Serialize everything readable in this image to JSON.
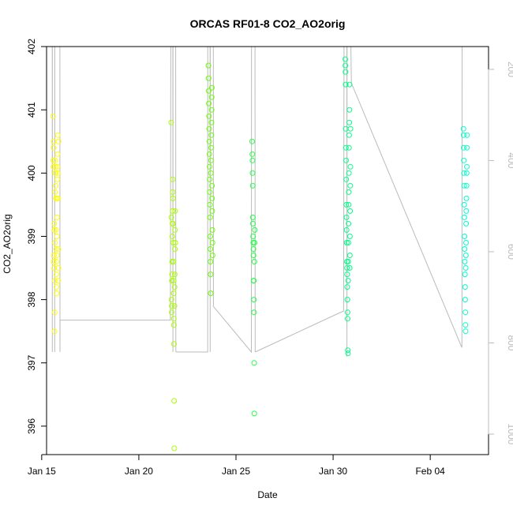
{
  "chart_data": {
    "type": "scatter",
    "title": "ORCAS RF01-8 CO2_AO2orig",
    "xlabel": "Date",
    "ylabel": "CO2_AO2orig",
    "xlim": [
      "2016-01-15T06:00",
      "2016-02-07T00:00"
    ],
    "ylim": [
      395.55,
      402.0
    ],
    "y2lim": [
      1045,
      150
    ],
    "x_ticks": [
      {
        "label": "Jan 15",
        "date": "2016-01-15"
      },
      {
        "label": "Jan 20",
        "date": "2016-01-20"
      },
      {
        "label": "Jan 25",
        "date": "2016-01-25"
      },
      {
        "label": "Jan 30",
        "date": "2016-01-30"
      },
      {
        "label": "Feb 04",
        "date": "2016-02-04"
      }
    ],
    "y_ticks": [
      "396",
      "397",
      "398",
      "399",
      "400",
      "401",
      "402"
    ],
    "y2_ticks": [
      "200",
      "400",
      "600",
      "800",
      "1000"
    ],
    "grid": false,
    "legend": "none",
    "colors": {
      "RF01": "#ffff00",
      "RF02": "#aaff00",
      "RF03": "#66ff00",
      "RF04": "#22ff44",
      "RF05": "#00ff88",
      "RF06": "#00ffcc",
      "altitude_line": "#bbbbbb"
    },
    "series": [
      {
        "color_key": "RF01",
        "x": [
          "2016-01-15T14:00",
          "2016-01-15T14:20",
          "2016-01-15T14:30",
          "2016-01-15T14:40",
          "2016-01-15T14:50",
          "2016-01-15T15:00",
          "2016-01-15T15:10",
          "2016-01-15T15:20",
          "2016-01-15T15:30",
          "2016-01-15T15:40",
          "2016-01-15T15:50",
          "2016-01-15T16:00",
          "2016-01-15T16:10",
          "2016-01-15T16:20",
          "2016-01-15T16:30",
          "2016-01-15T16:40",
          "2016-01-15T16:50",
          "2016-01-15T17:00",
          "2016-01-15T17:10",
          "2016-01-15T17:20",
          "2016-01-15T17:30",
          "2016-01-15T17:40",
          "2016-01-15T17:50",
          "2016-01-15T18:00",
          "2016-01-15T18:10",
          "2016-01-15T18:20",
          "2016-01-15T18:30",
          "2016-01-15T18:40",
          "2016-01-15T18:50",
          "2016-01-15T19:00",
          "2016-01-15T19:10",
          "2016-01-15T19:20",
          "2016-01-15T19:30",
          "2016-01-15T19:40",
          "2016-01-15T19:50",
          "2016-01-15T20:00",
          "2016-01-15T20:10",
          "2016-01-15T20:20",
          "2016-01-15T20:30",
          "2016-01-15T20:40",
          "2016-01-15T20:50"
        ],
        "y": [
          400.9,
          400.2,
          400.1,
          400.4,
          400.5,
          398.6,
          398.7,
          398.5,
          399.2,
          399.1,
          397.5,
          397.8,
          398.3,
          398.9,
          399.7,
          400.0,
          400.2,
          400.1,
          400.0,
          399.8,
          399.6,
          399.1,
          398.8,
          398.6,
          398.4,
          398.2,
          398.1,
          398.7,
          399.0,
          399.3,
          399.6,
          399.9,
          400.1,
          400.3,
          400.6,
          400.0,
          399.6,
          398.3,
          398.5,
          398.8,
          400.5
        ],
        "altitude_hpa": [
          [
            [
              "2016-01-15T13:00",
              150
            ],
            [
              "2016-01-15T13:05",
              820
            ],
            [
              "2016-01-15T13:10",
              150
            ],
            [
              "2016-01-15T16:00",
              150
            ],
            [
              "2016-01-15T16:05",
              820
            ],
            [
              "2016-01-15T16:10",
              150
            ],
            [
              "2016-01-15T22:30",
              150
            ],
            [
              "2016-01-15T22:35",
              820
            ],
            [
              "2016-01-15T22:40",
              750
            ]
          ]
        ]
      },
      {
        "color_key": "RF02",
        "x": [
          "2016-01-21T16:00",
          "2016-01-21T16:10",
          "2016-01-21T16:20",
          "2016-01-21T16:30",
          "2016-01-21T16:40",
          "2016-01-21T16:50",
          "2016-01-21T17:00",
          "2016-01-21T17:10",
          "2016-01-21T17:20",
          "2016-01-21T17:30",
          "2016-01-21T17:40",
          "2016-01-21T17:50",
          "2016-01-21T18:00",
          "2016-01-21T18:10",
          "2016-01-21T18:20",
          "2016-01-21T18:30",
          "2016-01-21T18:40",
          "2016-01-21T18:50",
          "2016-01-21T19:00",
          "2016-01-21T19:10",
          "2016-01-21T19:20",
          "2016-01-21T19:30",
          "2016-01-21T19:40",
          "2016-01-21T19:50",
          "2016-01-21T20:00",
          "2016-01-21T20:10",
          "2016-01-21T20:20",
          "2016-01-21T20:30",
          "2016-01-21T20:40",
          "2016-01-21T20:50",
          "2016-01-21T21:00"
        ],
        "y": [
          400.8,
          399.3,
          398.0,
          397.8,
          397.9,
          398.3,
          398.4,
          398.6,
          399.0,
          399.2,
          399.4,
          399.7,
          399.9,
          399.6,
          399.2,
          398.9,
          398.6,
          398.3,
          398.1,
          397.7,
          397.6,
          397.3,
          396.4,
          395.65,
          397.9,
          398.2,
          398.4,
          398.8,
          399.1,
          399.4,
          398.9
        ],
        "altitude_hpa": [
          [
            [
              "2016-01-21T15:00",
              750
            ],
            [
              "2016-01-21T15:30",
              150
            ],
            [
              "2016-01-21T18:00",
              150
            ],
            [
              "2016-01-21T18:05",
              820
            ],
            [
              "2016-01-21T18:10",
              150
            ],
            [
              "2016-01-21T21:30",
              150
            ],
            [
              "2016-01-21T21:40",
              820
            ]
          ]
        ]
      },
      {
        "color_key": "RF03",
        "x": [
          "2016-01-23T14:00",
          "2016-01-23T14:10",
          "2016-01-23T14:20",
          "2016-01-23T14:30",
          "2016-01-23T14:40",
          "2016-01-23T14:50",
          "2016-01-23T15:00",
          "2016-01-23T15:10",
          "2016-01-23T15:20",
          "2016-01-23T15:30",
          "2016-01-23T15:40",
          "2016-01-23T15:50",
          "2016-01-23T16:00",
          "2016-01-23T16:10",
          "2016-01-23T16:20",
          "2016-01-23T16:30",
          "2016-01-23T16:40",
          "2016-01-23T16:50",
          "2016-01-23T17:00",
          "2016-01-23T17:10",
          "2016-01-23T17:20",
          "2016-01-23T17:30",
          "2016-01-23T17:40",
          "2016-01-23T17:50",
          "2016-01-23T18:00",
          "2016-01-23T18:10",
          "2016-01-23T18:20",
          "2016-01-23T18:30",
          "2016-01-23T18:40",
          "2016-01-23T18:50",
          "2016-01-23T19:00",
          "2016-01-23T19:10"
        ],
        "y": [
          401.7,
          401.5,
          401.3,
          401.1,
          400.9,
          400.7,
          400.5,
          400.3,
          400.1,
          399.9,
          399.7,
          399.5,
          399.3,
          399.0,
          398.8,
          398.6,
          398.4,
          398.1,
          400.0,
          400.2,
          400.4,
          400.6,
          400.8,
          401.0,
          401.2,
          401.35,
          399.8,
          399.6,
          399.4,
          399.1,
          398.9,
          398.7
        ],
        "altitude_hpa": [
          [
            [
              "2016-01-23T13:00",
              820
            ],
            [
              "2016-01-23T13:05",
              150
            ],
            [
              "2016-01-23T16:00",
              150
            ],
            [
              "2016-01-23T16:05",
              820
            ],
            [
              "2016-01-23T16:10",
              150
            ],
            [
              "2016-01-23T20:00",
              150
            ],
            [
              "2016-01-23T20:05",
              720
            ]
          ]
        ]
      },
      {
        "color_key": "RF04",
        "x": [
          "2016-01-25T20:00",
          "2016-01-25T20:10",
          "2016-01-25T20:20",
          "2016-01-25T20:30",
          "2016-01-25T20:40",
          "2016-01-25T20:50",
          "2016-01-25T21:00",
          "2016-01-25T21:10",
          "2016-01-25T21:20",
          "2016-01-25T21:30",
          "2016-01-25T21:40",
          "2016-01-25T21:50",
          "2016-01-25T22:00",
          "2016-01-25T22:10",
          "2016-01-25T22:20",
          "2016-01-25T22:30",
          "2016-01-25T22:40",
          "2016-01-25T22:50",
          "2016-01-25T23:00",
          "2016-01-25T23:10"
        ],
        "y": [
          400.5,
          400.3,
          400.2,
          400.0,
          399.8,
          399.3,
          399.2,
          399.0,
          398.9,
          398.8,
          398.7,
          398.3,
          398.3,
          398.0,
          397.8,
          397.0,
          396.2,
          398.6,
          398.9,
          399.1
        ],
        "altitude_hpa": [
          [
            [
              "2016-01-25T19:00",
              820
            ],
            [
              "2016-01-25T19:10",
              150
            ],
            [
              "2016-01-25T23:30",
              150
            ],
            [
              "2016-01-25T23:40",
              820
            ]
          ]
        ]
      },
      {
        "color_key": "RF05",
        "x": [
          "2016-01-30T15:00",
          "2016-01-30T15:10",
          "2016-01-30T15:20",
          "2016-01-30T15:30",
          "2016-01-30T15:40",
          "2016-01-30T15:50",
          "2016-01-30T16:00",
          "2016-01-30T16:10",
          "2016-01-30T16:20",
          "2016-01-30T16:30",
          "2016-01-30T16:40",
          "2016-01-30T16:50",
          "2016-01-30T17:00",
          "2016-01-30T17:10",
          "2016-01-30T17:20",
          "2016-01-30T17:30",
          "2016-01-30T17:40",
          "2016-01-30T17:50",
          "2016-01-30T18:00",
          "2016-01-30T18:10",
          "2016-01-30T18:20",
          "2016-01-30T18:30",
          "2016-01-30T18:40",
          "2016-01-30T18:50",
          "2016-01-30T19:00",
          "2016-01-30T19:10",
          "2016-01-30T19:20",
          "2016-01-30T19:30",
          "2016-01-30T19:40",
          "2016-01-30T19:50",
          "2016-01-30T20:00",
          "2016-01-30T20:10",
          "2016-01-30T20:20",
          "2016-01-30T20:30",
          "2016-01-30T20:40",
          "2016-01-30T20:50",
          "2016-01-30T21:00",
          "2016-01-30T21:10",
          "2016-01-30T21:20",
          "2016-01-30T21:30"
        ],
        "y": [
          401.8,
          401.7,
          401.6,
          401.4,
          400.7,
          400.4,
          400.2,
          399.9,
          399.5,
          399.3,
          399.1,
          398.9,
          398.6,
          398.5,
          398.4,
          398.2,
          398.0,
          397.8,
          397.7,
          397.2,
          397.15,
          398.3,
          398.6,
          398.9,
          399.2,
          399.5,
          399.7,
          400.0,
          400.4,
          400.6,
          400.8,
          401.0,
          401.4,
          398.5,
          398.7,
          399.0,
          399.4,
          399.8,
          400.1,
          400.7
        ],
        "altitude_hpa": [
          [
            [
              "2016-01-30T13:00",
              730
            ],
            [
              "2016-01-30T13:30",
              150
            ],
            [
              "2016-01-30T17:00",
              150
            ],
            [
              "2016-01-30T17:05",
              830
            ],
            [
              "2016-01-30T17:10",
              150
            ],
            [
              "2016-01-30T22:00",
              150
            ],
            [
              "2016-01-30T22:30",
              230
            ]
          ]
        ]
      },
      {
        "color_key": "RF06",
        "x": [
          "2016-02-05T17:00",
          "2016-02-05T17:10",
          "2016-02-05T17:20",
          "2016-02-05T17:30",
          "2016-02-05T17:40",
          "2016-02-05T17:50",
          "2016-02-05T18:00",
          "2016-02-05T18:10",
          "2016-02-05T18:20",
          "2016-02-05T18:30",
          "2016-02-05T18:40",
          "2016-02-05T18:50",
          "2016-02-05T19:00",
          "2016-02-05T19:10",
          "2016-02-05T19:20",
          "2016-02-05T19:30",
          "2016-02-05T19:40",
          "2016-02-05T19:50",
          "2016-02-05T20:00",
          "2016-02-05T20:10",
          "2016-02-05T20:20",
          "2016-02-05T20:30",
          "2016-02-05T20:40",
          "2016-02-05T20:50",
          "2016-02-05T21:00",
          "2016-02-05T21:10",
          "2016-02-05T21:20",
          "2016-02-05T21:30"
        ],
        "y": [
          400.7,
          400.6,
          400.4,
          400.2,
          400.0,
          399.8,
          399.5,
          399.3,
          399.0,
          398.8,
          398.6,
          398.4,
          398.2,
          398.0,
          397.8,
          397.6,
          397.5,
          398.5,
          398.7,
          398.9,
          399.2,
          399.4,
          399.6,
          399.8,
          400.0,
          400.1,
          400.4,
          400.6
        ],
        "altitude_hpa": [
          [
            [
              "2016-02-05T15:00",
              810
            ],
            [
              "2016-02-05T15:10",
              770
            ],
            [
              "2016-02-05T15:20",
              150
            ],
            [
              "2016-02-05T21:50",
              150
            ],
            [
              "2016-02-05T21:55",
              150
            ],
            [
              "2016-02-05T22:00",
              150
            ],
            [
              "2016-02-05T22:05",
              150
            ],
            [
              "2016-02-05T22:10",
              150
            ]
          ]
        ]
      }
    ]
  }
}
